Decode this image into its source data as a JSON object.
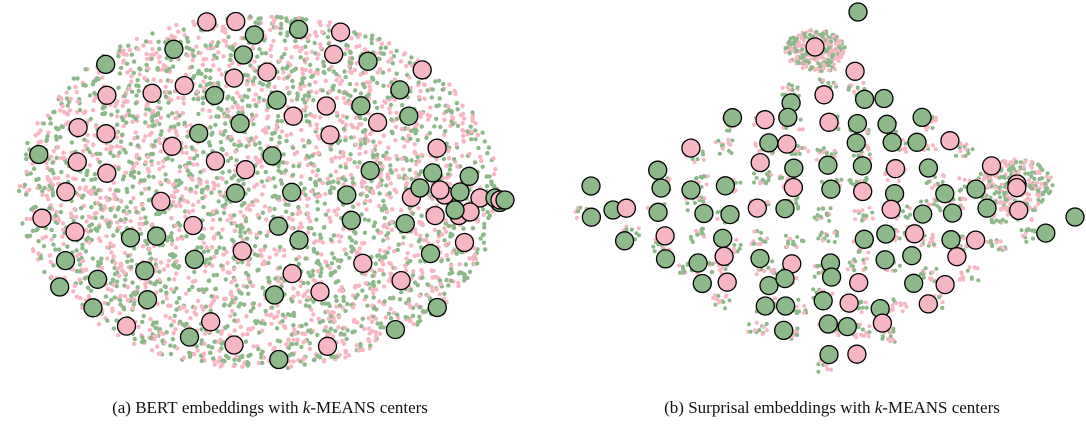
{
  "figures": [
    {
      "caption": {
        "label": "(a)",
        "parts": [
          "BERT",
          "embeddings with",
          "k",
          "-",
          "MEANS",
          "centers"
        ]
      }
    },
    {
      "caption": {
        "label": "(b)",
        "parts": [
          "Surprisal embeddings with",
          "k",
          "-",
          "MEANS",
          "centers"
        ]
      }
    }
  ]
}
